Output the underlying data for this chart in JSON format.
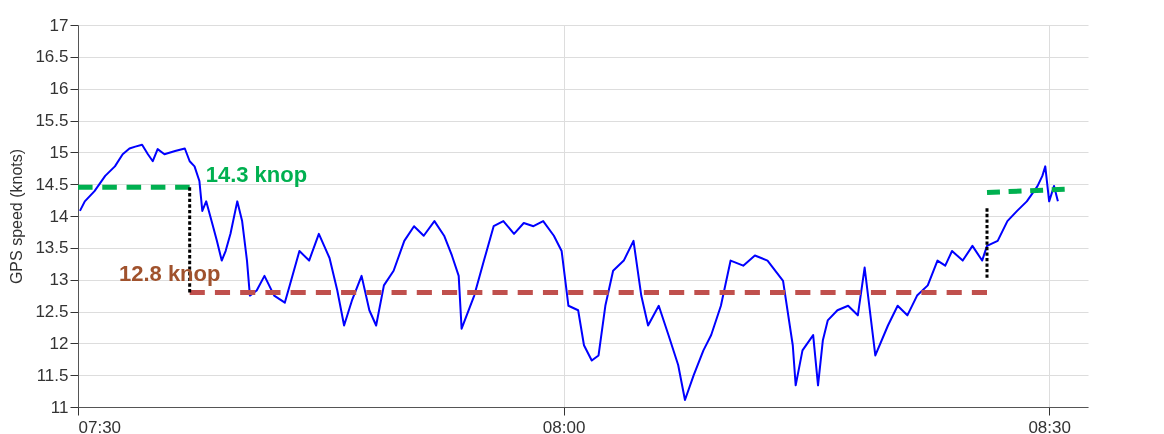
{
  "chart_data": {
    "type": "line",
    "ylabel": "GPS speed (knots)",
    "xlim": [
      7.5,
      8.54
    ],
    "ylim": [
      11,
      17
    ],
    "xticks": [
      {
        "value": 7.5,
        "label": "07:30"
      },
      {
        "value": 8.0,
        "label": "08:00"
      },
      {
        "value": 8.5,
        "label": "08:30"
      }
    ],
    "yticks": [
      11,
      11.5,
      12,
      12.5,
      13,
      13.5,
      14,
      14.5,
      15,
      15.5,
      16,
      16.5,
      17
    ],
    "grid": true,
    "series": [
      {
        "color": "#0000ff",
        "line_style": "solid",
        "x": [
          7.502,
          7.507,
          7.517,
          7.528,
          7.538,
          7.546,
          7.553,
          7.559,
          7.566,
          7.572,
          7.577,
          7.582,
          7.589,
          7.6,
          7.61,
          7.615,
          7.62,
          7.625,
          7.628,
          7.632,
          7.639,
          7.643,
          7.648,
          7.652,
          7.657,
          7.664,
          7.669,
          7.674,
          7.677,
          7.684,
          7.692,
          7.702,
          7.713,
          7.718,
          7.728,
          7.738,
          7.748,
          7.759,
          7.767,
          7.774,
          7.782,
          7.792,
          7.8,
          7.807,
          7.815,
          7.825,
          7.836,
          7.846,
          7.856,
          7.867,
          7.877,
          7.885,
          7.892,
          7.895,
          7.908,
          7.918,
          7.928,
          7.938,
          7.949,
          7.959,
          7.969,
          7.979,
          7.99,
          7.998,
          8.005,
          8.015,
          8.021,
          8.029,
          8.036,
          8.043,
          8.051,
          8.062,
          8.072,
          8.08,
          8.087,
          8.098,
          8.108,
          8.118,
          8.125,
          8.134,
          8.144,
          8.152,
          8.162,
          8.172,
          8.185,
          8.197,
          8.21,
          8.226,
          8.236,
          8.239,
          8.246,
          8.257,
          8.262,
          8.267,
          8.272,
          8.282,
          8.293,
          8.303,
          8.31,
          8.321,
          8.334,
          8.344,
          8.354,
          8.364,
          8.375,
          8.385,
          8.393,
          8.4,
          8.411,
          8.421,
          8.431,
          8.436,
          8.447,
          8.457,
          8.467,
          8.477,
          8.488,
          8.493,
          8.496,
          8.5,
          8.505,
          8.509
        ],
        "values": [
          14.08,
          14.23,
          14.39,
          14.63,
          14.78,
          14.97,
          15.06,
          15.09,
          15.12,
          14.97,
          14.86,
          15.05,
          14.97,
          15.02,
          15.06,
          14.86,
          14.78,
          14.55,
          14.08,
          14.23,
          13.84,
          13.61,
          13.3,
          13.45,
          13.72,
          14.23,
          13.92,
          13.3,
          12.75,
          12.83,
          13.06,
          12.75,
          12.64,
          12.91,
          13.45,
          13.3,
          13.72,
          13.34,
          12.83,
          12.28,
          12.67,
          13.06,
          12.52,
          12.28,
          12.91,
          13.14,
          13.61,
          13.84,
          13.69,
          13.92,
          13.69,
          13.38,
          13.06,
          12.23,
          12.75,
          13.3,
          13.84,
          13.92,
          13.72,
          13.89,
          13.84,
          13.92,
          13.69,
          13.45,
          12.59,
          12.52,
          11.97,
          11.73,
          11.81,
          12.59,
          13.14,
          13.3,
          13.61,
          12.75,
          12.28,
          12.59,
          12.13,
          11.66,
          11.11,
          11.5,
          11.89,
          12.13,
          12.59,
          13.3,
          13.22,
          13.38,
          13.3,
          12.98,
          11.97,
          11.34,
          11.89,
          12.13,
          11.34,
          12.05,
          12.36,
          12.52,
          12.59,
          12.44,
          13.19,
          11.81,
          12.28,
          12.59,
          12.44,
          12.75,
          12.91,
          13.3,
          13.22,
          13.45,
          13.3,
          13.53,
          13.3,
          13.53,
          13.61,
          13.92,
          14.08,
          14.23,
          14.47,
          14.63,
          14.78,
          14.23,
          14.47,
          14.23
        ]
      },
      {
        "color": "#00b050",
        "line_style": "dashed",
        "x": [
          7.5,
          7.615
        ],
        "values": [
          14.45,
          14.45
        ]
      },
      {
        "color": "#00b050",
        "line_style": "dashed",
        "x": [
          8.436,
          8.516
        ],
        "values": [
          14.37,
          14.42
        ]
      },
      {
        "color": "#c0504d",
        "line_style": "dashed",
        "x": [
          7.615,
          8.436
        ],
        "values": [
          12.8,
          12.8
        ]
      },
      {
        "color": "#000000",
        "line_style": "dotted",
        "x": [
          7.615,
          7.615
        ],
        "values": [
          14.45,
          12.8
        ]
      },
      {
        "color": "#000000",
        "line_style": "dotted",
        "x": [
          8.436,
          8.436
        ],
        "values": [
          14.12,
          13.03
        ]
      }
    ],
    "annotations": [
      {
        "text": "14.3 knop",
        "x": 7.615,
        "y": 14.45
      },
      {
        "text": "12.8 knop",
        "x": 7.615,
        "y": 12.8
      }
    ]
  }
}
